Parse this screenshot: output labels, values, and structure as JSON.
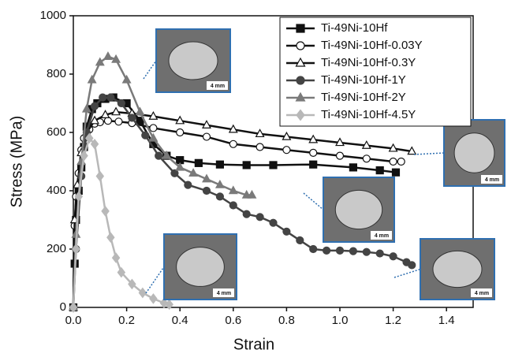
{
  "chart_data": {
    "type": "line",
    "x_label": "Strain",
    "y_label": "Stress (MPa)",
    "xlim": [
      0,
      1.5
    ],
    "ylim": [
      0,
      1000
    ],
    "xticks": [
      {
        "value": 0,
        "label": "0.0"
      },
      0.2,
      0.4,
      0.6,
      0.8,
      {
        "value": 1,
        "label": "1.0"
      },
      1.2,
      1.4
    ],
    "yticks": [
      0,
      200,
      400,
      600,
      800,
      1000
    ],
    "legend": "top-right",
    "annotations": [
      "4 mm",
      "4 mm",
      "4 mm",
      "4 mm",
      "4 mm"
    ],
    "series": [
      {
        "name": "Ti-49Ni-10Hf",
        "color": "#111111",
        "marker": "square",
        "filled": true,
        "x": [
          0,
          0.005,
          0.01,
          0.02,
          0.03,
          0.04,
          0.05,
          0.07,
          0.09,
          0.12,
          0.15,
          0.2,
          0.25,
          0.3,
          0.35,
          0.4,
          0.47,
          0.55,
          0.65,
          0.75,
          0.9,
          1.05,
          1.15,
          1.21
        ],
        "values": [
          0,
          150,
          300,
          400,
          480,
          550,
          620,
          680,
          700,
          715,
          720,
          700,
          640,
          560,
          520,
          505,
          495,
          490,
          488,
          488,
          490,
          480,
          470,
          463
        ]
      },
      {
        "name": "Ti-49Ni-10Hf-0.03Y",
        "color": "#111111",
        "marker": "circle",
        "filled": false,
        "x": [
          0,
          0.005,
          0.01,
          0.02,
          0.03,
          0.04,
          0.06,
          0.08,
          0.1,
          0.13,
          0.17,
          0.22,
          0.3,
          0.4,
          0.5,
          0.6,
          0.7,
          0.8,
          0.9,
          1.0,
          1.1,
          1.2,
          1.23
        ],
        "values": [
          0,
          280,
          380,
          460,
          540,
          580,
          610,
          630,
          635,
          640,
          637,
          632,
          615,
          600,
          585,
          560,
          550,
          540,
          530,
          520,
          510,
          500,
          500
        ]
      },
      {
        "name": "Ti-49Ni-10Hf-0.3Y",
        "color": "#111111",
        "marker": "triangle",
        "filled": false,
        "x": [
          0,
          0.005,
          0.015,
          0.03,
          0.05,
          0.08,
          0.12,
          0.16,
          0.22,
          0.3,
          0.4,
          0.5,
          0.6,
          0.7,
          0.8,
          0.9,
          1.0,
          1.1,
          1.2,
          1.27
        ],
        "values": [
          0,
          300,
          420,
          530,
          600,
          640,
          660,
          670,
          665,
          655,
          640,
          625,
          610,
          595,
          585,
          575,
          565,
          555,
          545,
          535
        ]
      },
      {
        "name": "Ti-49Ni-10Hf-1Y",
        "color": "#444444",
        "marker": "circle",
        "filled": true,
        "x": [
          0,
          0.01,
          0.03,
          0.05,
          0.08,
          0.11,
          0.14,
          0.18,
          0.22,
          0.27,
          0.32,
          0.38,
          0.43,
          0.5,
          0.55,
          0.6,
          0.65,
          0.7,
          0.75,
          0.8,
          0.85,
          0.9,
          0.95,
          1.0,
          1.05,
          1.1,
          1.15,
          1.2,
          1.25,
          1.27
        ],
        "values": [
          0,
          200,
          450,
          600,
          690,
          720,
          720,
          700,
          650,
          590,
          520,
          460,
          420,
          400,
          380,
          350,
          320,
          310,
          290,
          260,
          230,
          200,
          195,
          195,
          193,
          190,
          185,
          175,
          155,
          145
        ]
      },
      {
        "name": "Ti-49Ni-10Hf-2Y",
        "color": "#7a7a7a",
        "marker": "triangle",
        "filled": true,
        "x": [
          0,
          0.01,
          0.03,
          0.05,
          0.07,
          0.1,
          0.13,
          0.16,
          0.2,
          0.25,
          0.3,
          0.35,
          0.4,
          0.45,
          0.5,
          0.55,
          0.6,
          0.65,
          0.67
        ],
        "values": [
          0,
          250,
          500,
          680,
          780,
          840,
          860,
          850,
          780,
          670,
          580,
          520,
          480,
          460,
          440,
          420,
          400,
          385,
          385
        ]
      },
      {
        "name": "Ti-49Ni-10Hf-4.5Y",
        "color": "#b8b8b8",
        "marker": "diamond",
        "filled": true,
        "x": [
          0,
          0.01,
          0.02,
          0.04,
          0.06,
          0.08,
          0.1,
          0.12,
          0.14,
          0.16,
          0.18,
          0.22,
          0.26,
          0.3,
          0.34,
          0.36
        ],
        "values": [
          0,
          200,
          380,
          520,
          580,
          560,
          450,
          330,
          240,
          170,
          120,
          80,
          50,
          30,
          15,
          10
        ]
      }
    ]
  }
}
